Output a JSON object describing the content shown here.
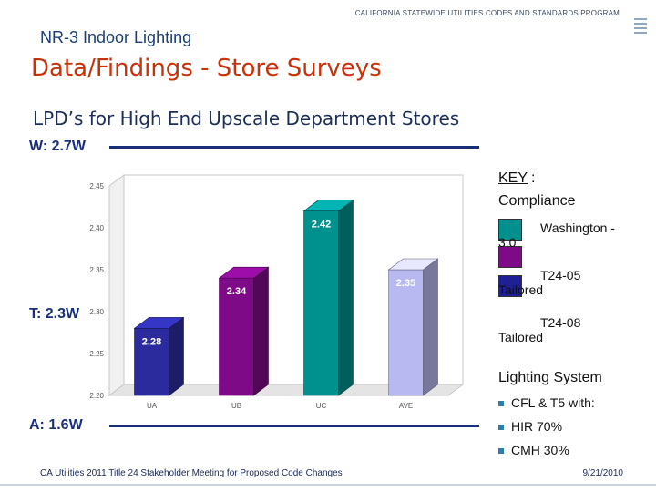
{
  "header": {
    "program": "CALIFORNIA STATEWIDE UTILITIES CODES AND STANDARDS PROGRAM",
    "subtitle": "NR-3 Indoor Lighting",
    "title": "Data/Findings - Store Surveys",
    "heading": "LPD’s for High End Upscale Department Stores"
  },
  "annotations": {
    "w": "W: 2.7W",
    "t": "T: 2.3W",
    "a": "A: 1.6W"
  },
  "chart_data": {
    "type": "bar",
    "categories": [
      "UA",
      "UB",
      "UC",
      "AVE"
    ],
    "values": [
      2.28,
      2.34,
      2.42,
      2.35
    ],
    "value_labels": [
      "2.28",
      "2.34",
      "2.42",
      "2.35"
    ],
    "colors": [
      "#2b2b9e",
      "#7e0a87",
      "#00918f",
      "#b9b9f2"
    ],
    "ylim": [
      2.2,
      2.45
    ],
    "yticks": [
      "2.20",
      "2.25",
      "2.30",
      "2.35",
      "2.40",
      "2.45"
    ],
    "title": "",
    "xlabel": "",
    "ylabel": "",
    "style": "3d"
  },
  "key": {
    "title": "KEY",
    "colon": ":",
    "subtitle": "Compliance",
    "items": [
      {
        "line1": "Washington -",
        "line2": "3.0",
        "color": "#00918f"
      },
      {
        "line1": "T24-05",
        "line2": "Tailored",
        "color": "#7e0a87"
      },
      {
        "line1": "T24-08",
        "line2": "Tailored",
        "color": "#1f1f96"
      }
    ]
  },
  "lighting": {
    "title": "Lighting System",
    "bullets": [
      "CFL & T5 with:",
      "HIR 70%",
      "CMH 30%"
    ]
  },
  "footer": {
    "text": "CA Utilities 2011 Title 24 Stakeholder Meeting for Proposed Code Changes",
    "date": "9/21/2010"
  }
}
